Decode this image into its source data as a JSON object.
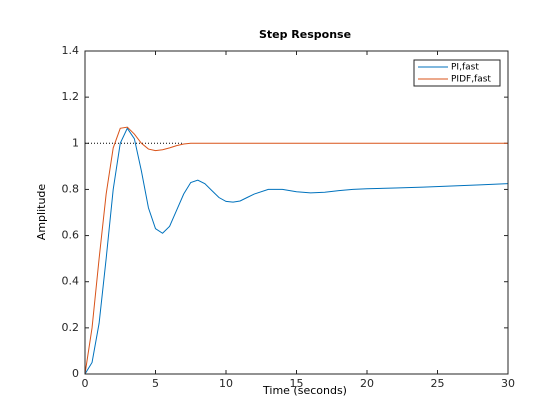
{
  "chart_data": {
    "type": "line",
    "title": "Step Response",
    "xlabel": "Time (seconds)",
    "ylabel": "Amplitude",
    "x": [
      0,
      0.5,
      1,
      1.5,
      2,
      2.5,
      3,
      3.5,
      4,
      4.5,
      5,
      5.5,
      6,
      6.5,
      7,
      7.5,
      8,
      8.5,
      9,
      9.5,
      10,
      10.5,
      11,
      11.5,
      12,
      13,
      14,
      15,
      16,
      17,
      18,
      19,
      20,
      22,
      24,
      26,
      28,
      30
    ],
    "series": [
      {
        "name": "PI,fast",
        "color": "#0072bd",
        "values": [
          0,
          0.05,
          0.22,
          0.5,
          0.8,
          1.0,
          1.065,
          1.02,
          0.88,
          0.72,
          0.63,
          0.61,
          0.64,
          0.71,
          0.78,
          0.83,
          0.84,
          0.825,
          0.795,
          0.765,
          0.748,
          0.745,
          0.75,
          0.765,
          0.78,
          0.8,
          0.8,
          0.79,
          0.785,
          0.788,
          0.795,
          0.8,
          0.803,
          0.806,
          0.81,
          0.815,
          0.82,
          0.825
        ]
      },
      {
        "name": "PIDF,fast",
        "color": "#d95319",
        "values": [
          0,
          0.2,
          0.5,
          0.78,
          0.98,
          1.065,
          1.07,
          1.04,
          1.0,
          0.975,
          0.968,
          0.972,
          0.98,
          0.99,
          0.997,
          1,
          1,
          1,
          1,
          1,
          1,
          1,
          1,
          1,
          1,
          1,
          1,
          1,
          1,
          1,
          1,
          1,
          1,
          1,
          1,
          1,
          1,
          1
        ]
      }
    ],
    "reference_line": {
      "y": 1,
      "x": [
        0,
        7
      ]
    },
    "xlim": [
      0,
      30
    ],
    "xticks": [
      0,
      5,
      10,
      15,
      20,
      25,
      30
    ],
    "ylim": [
      0,
      1.4
    ],
    "yticks": [
      0,
      0.2,
      0.4,
      0.6,
      0.8,
      1,
      1.2,
      1.4
    ],
    "legend": "upper right"
  }
}
